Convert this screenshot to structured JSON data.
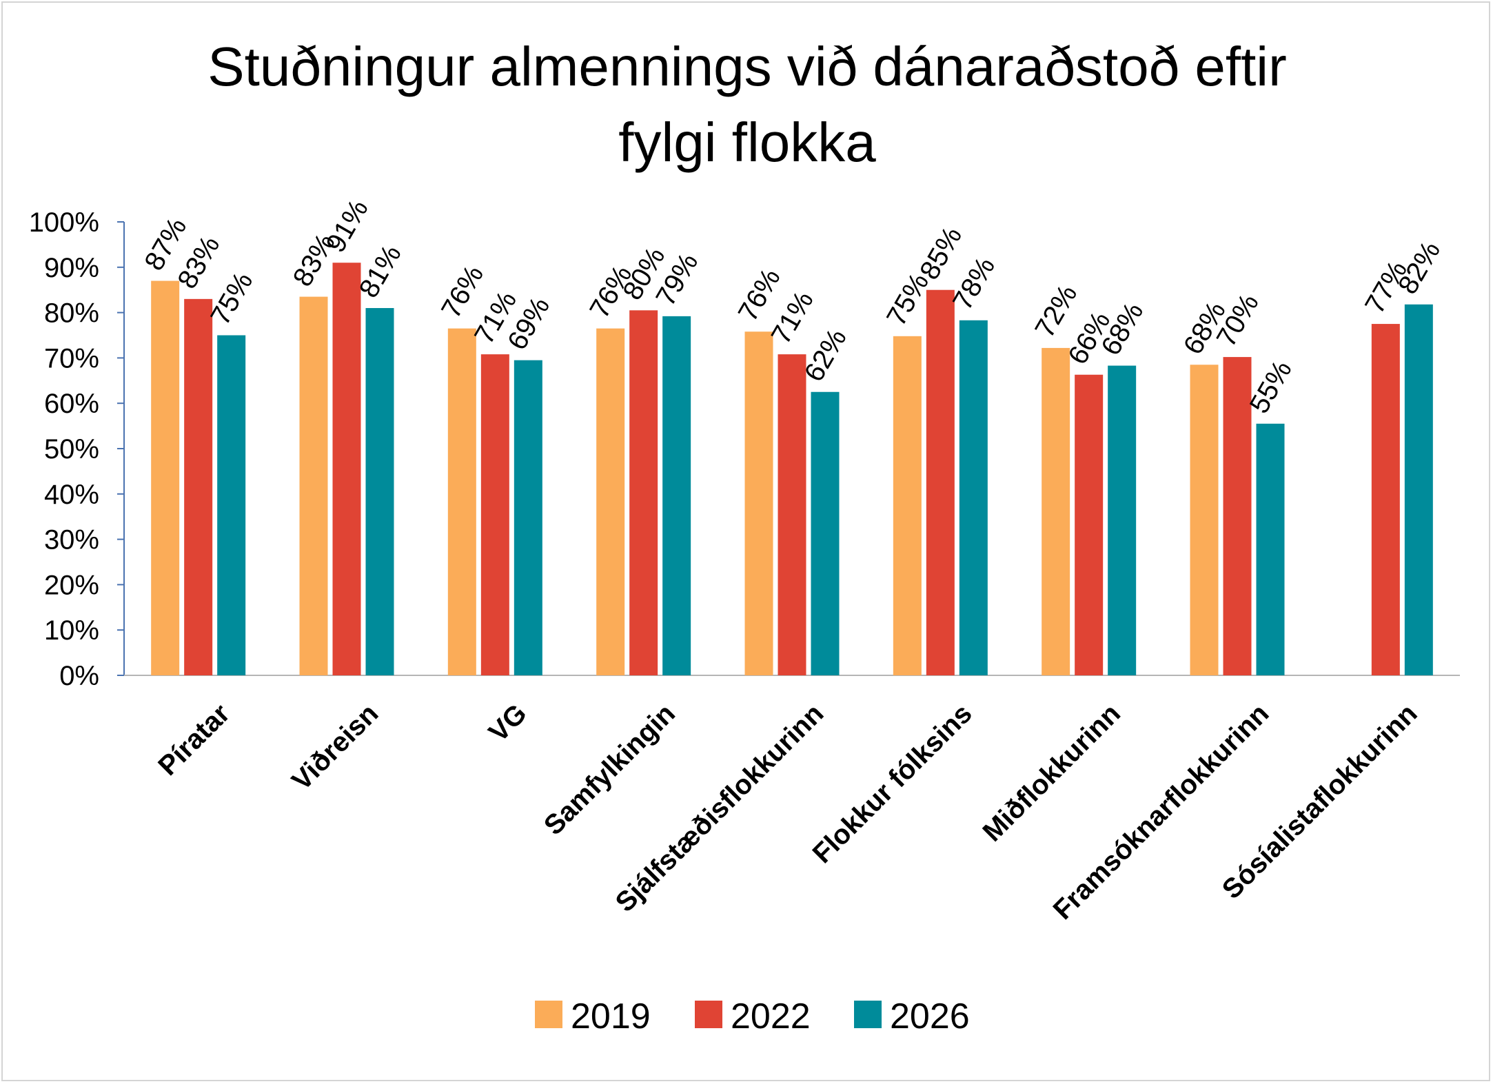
{
  "chart_data": {
    "type": "bar",
    "title_lines": [
      "Stuðningur almennings við dánaraðstoð eftir",
      "fylgi flokka"
    ],
    "categories": [
      "Píratar",
      "Viðreisn",
      "VG",
      "Samfylkingin",
      "Sjálfstæðisflokkurinn",
      "Flokkur fólksins",
      "Miðflokkurinn",
      "Framsóknarflokkurinn",
      "Sósíalistaflokkurinn"
    ],
    "series": [
      {
        "name": "2019",
        "color": "#fbac58",
        "values": [
          0.87,
          0.835,
          0.765,
          0.765,
          0.758,
          0.748,
          0.722,
          0.685,
          null
        ],
        "labels": [
          "87%",
          "83%",
          "76%",
          "76%",
          "76%",
          "75%",
          "72%",
          "68%",
          null
        ]
      },
      {
        "name": "2022",
        "color": "#e04434",
        "values": [
          0.83,
          0.91,
          0.708,
          0.805,
          0.708,
          0.85,
          0.663,
          0.702,
          0.775
        ],
        "labels": [
          "83%",
          "91%",
          "71%",
          "80%",
          "71%",
          "85%",
          "66%",
          "70%",
          "77%"
        ]
      },
      {
        "name": "2026",
        "color": "#008b9a",
        "values": [
          0.75,
          0.81,
          0.695,
          0.792,
          0.625,
          0.783,
          0.683,
          0.555,
          0.818
        ],
        "labels": [
          "75%",
          "81%",
          "69%",
          "79%",
          "62%",
          "78%",
          "68%",
          "55%",
          "82%"
        ]
      }
    ],
    "y_ticks": [
      "0%",
      "10%",
      "20%",
      "30%",
      "40%",
      "50%",
      "60%",
      "70%",
      "80%",
      "90%",
      "100%"
    ],
    "ylim": [
      0,
      1
    ],
    "grid": false,
    "legend_position": "bottom"
  }
}
